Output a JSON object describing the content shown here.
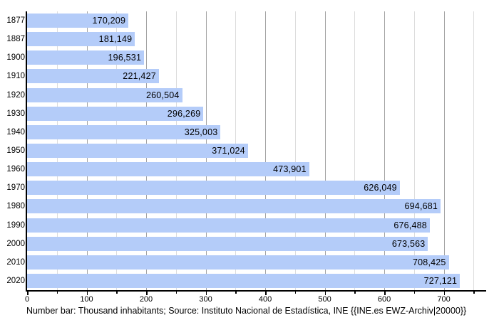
{
  "chart_data": {
    "type": "bar",
    "orientation": "horizontal",
    "title": "",
    "xlabel": "",
    "ylabel": "",
    "unit": "inhabitants",
    "categories": [
      "1877",
      "1887",
      "1900",
      "1910",
      "1920",
      "1930",
      "1940",
      "1950",
      "1960",
      "1970",
      "1980",
      "1990",
      "2000",
      "2010",
      "2020"
    ],
    "values": [
      170209,
      181149,
      196531,
      221427,
      260504,
      296269,
      325003,
      371024,
      473901,
      626049,
      694681,
      676488,
      673563,
      708425,
      727121
    ],
    "value_labels": [
      "170,209",
      "181,149",
      "196,531",
      "221,427",
      "260,504",
      "296,269",
      "325,003",
      "371,024",
      "473,901",
      "626,049",
      "694,681",
      "676,488",
      "673,563",
      "708,425",
      "727,121"
    ],
    "axis": {
      "min": 0,
      "max": 770000,
      "major_step": 100000,
      "minor_step": 50000,
      "last_minor": 750000,
      "tick_labels": [
        "0",
        "100",
        "200",
        "300",
        "400",
        "500",
        "600",
        "700"
      ],
      "grid": true,
      "legend": "none"
    },
    "caption": "Number bar: Thousand inhabitants; Source: Instituto Nacional de Estadística, INE {{INE.es EWZ-Archiv|20000}}",
    "colors": {
      "bar": "#b4ccf9",
      "grid_major": "#a3a3a3",
      "grid_minor": "#dcdcdc",
      "axis": "#000000",
      "text": "#000000",
      "background": "#ffffff"
    }
  }
}
